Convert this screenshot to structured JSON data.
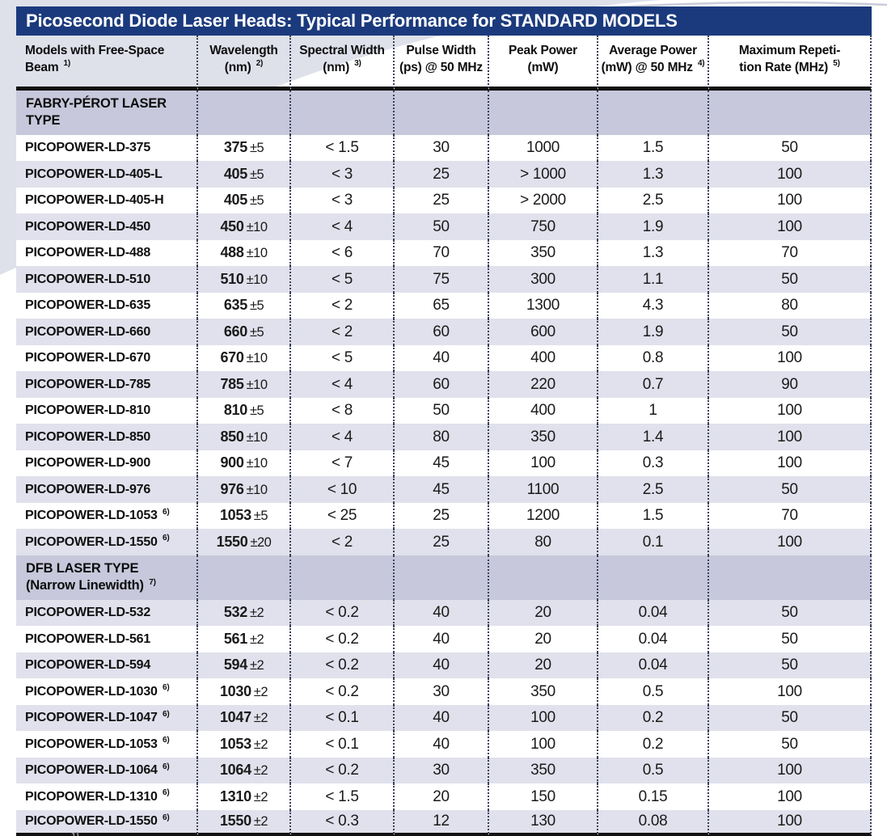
{
  "title": "Picosecond Diode Laser Heads: Typical Performance for STANDARD MODELS",
  "columns": [
    {
      "line1": "Models with Free-Space",
      "line2": "Beam",
      "sup": "1)"
    },
    {
      "line1": "Wavelength",
      "line2": "(nm)",
      "sup": "2)"
    },
    {
      "line1": "Spectral Width",
      "line2": "(nm)",
      "sup": "3)"
    },
    {
      "line1": "Pulse Width",
      "line2": "(ps) @ 50 MHz",
      "sup": ""
    },
    {
      "line1": "Peak Power",
      "line2": "(mW)",
      "sup": ""
    },
    {
      "line1": "Average Power",
      "line2": "(mW) @ 50 MHz",
      "sup": "4)"
    },
    {
      "line1": "Maximum Repeti-",
      "line2": "tion Rate  (MHz)",
      "sup": "5)"
    }
  ],
  "sections": [
    {
      "name": "FABRY-PÉROT LASER TYPE",
      "name_line2": "",
      "sup": "",
      "rows": [
        {
          "model": "PICOPOWER-LD-375",
          "sup": "",
          "wl": "375",
          "tol": "±5",
          "spectral": "< 1.5",
          "pulse": "30",
          "peak": "1000",
          "avg": "1.5",
          "rep": "50"
        },
        {
          "model": "PICOPOWER-LD-405-L",
          "sup": "",
          "wl": "405",
          "tol": "±5",
          "spectral": "< 3",
          "pulse": "25",
          "peak": "> 1000",
          "avg": "1.3",
          "rep": "100"
        },
        {
          "model": "PICOPOWER-LD-405-H",
          "sup": "",
          "wl": "405",
          "tol": "±5",
          "spectral": "< 3",
          "pulse": "25",
          "peak": "> 2000",
          "avg": "2.5",
          "rep": "100"
        },
        {
          "model": "PICOPOWER-LD-450",
          "sup": "",
          "wl": "450",
          "tol": "±10",
          "spectral": "< 4",
          "pulse": "50",
          "peak": "750",
          "avg": "1.9",
          "rep": "100"
        },
        {
          "model": "PICOPOWER-LD-488",
          "sup": "",
          "wl": "488",
          "tol": "±10",
          "spectral": "< 6",
          "pulse": "70",
          "peak": "350",
          "avg": "1.3",
          "rep": "70"
        },
        {
          "model": "PICOPOWER-LD-510",
          "sup": "",
          "wl": "510",
          "tol": "±10",
          "spectral": "< 5",
          "pulse": "75",
          "peak": "300",
          "avg": "1.1",
          "rep": "50"
        },
        {
          "model": "PICOPOWER-LD-635",
          "sup": "",
          "wl": "635",
          "tol": "±5",
          "spectral": "< 2",
          "pulse": "65",
          "peak": "1300",
          "avg": "4.3",
          "rep": "80"
        },
        {
          "model": "PICOPOWER-LD-660",
          "sup": "",
          "wl": "660",
          "tol": "±5",
          "spectral": "< 2",
          "pulse": "60",
          "peak": "600",
          "avg": "1.9",
          "rep": "50"
        },
        {
          "model": "PICOPOWER-LD-670",
          "sup": "",
          "wl": "670",
          "tol": "±10",
          "spectral": "< 5",
          "pulse": "40",
          "peak": "400",
          "avg": "0.8",
          "rep": "100"
        },
        {
          "model": "PICOPOWER-LD-785",
          "sup": "",
          "wl": "785",
          "tol": "±10",
          "spectral": "< 4",
          "pulse": "60",
          "peak": "220",
          "avg": "0.7",
          "rep": "90"
        },
        {
          "model": "PICOPOWER-LD-810",
          "sup": "",
          "wl": "810",
          "tol": "±5",
          "spectral": "< 8",
          "pulse": "50",
          "peak": "400",
          "avg": "1",
          "rep": "100"
        },
        {
          "model": "PICOPOWER-LD-850",
          "sup": "",
          "wl": "850",
          "tol": "±10",
          "spectral": "< 4",
          "pulse": "80",
          "peak": "350",
          "avg": "1.4",
          "rep": "100"
        },
        {
          "model": "PICOPOWER-LD-900",
          "sup": "",
          "wl": "900",
          "tol": "±10",
          "spectral": "< 7",
          "pulse": "45",
          "peak": "100",
          "avg": "0.3",
          "rep": "100"
        },
        {
          "model": "PICOPOWER-LD-976",
          "sup": "",
          "wl": "976",
          "tol": "±10",
          "spectral": "< 10",
          "pulse": "45",
          "peak": "1100",
          "avg": "2.5",
          "rep": "50"
        },
        {
          "model": "PICOPOWER-LD-1053",
          "sup": "6)",
          "wl": "1053",
          "tol": "±5",
          "spectral": "< 25",
          "pulse": "25",
          "peak": "1200",
          "avg": "1.5",
          "rep": "70"
        },
        {
          "model": "PICOPOWER-LD-1550",
          "sup": "6)",
          "wl": "1550",
          "tol": "±20",
          "spectral": "< 2",
          "pulse": "25",
          "peak": "80",
          "avg": "0.1",
          "rep": "100"
        }
      ]
    },
    {
      "name": "DFB LASER TYPE",
      "name_line2": "(Narrow Linewidth)",
      "sup": "7)",
      "rows": [
        {
          "model": "PICOPOWER-LD-532",
          "sup": "",
          "wl": "532",
          "tol": "±2",
          "spectral": "< 0.2",
          "pulse": "40",
          "peak": "20",
          "avg": "0.04",
          "rep": "50"
        },
        {
          "model": "PICOPOWER-LD-561",
          "sup": "",
          "wl": "561",
          "tol": "±2",
          "spectral": "< 0.2",
          "pulse": "40",
          "peak": "20",
          "avg": "0.04",
          "rep": "50"
        },
        {
          "model": "PICOPOWER-LD-594",
          "sup": "",
          "wl": "594",
          "tol": "±2",
          "spectral": "< 0.2",
          "pulse": "40",
          "peak": "20",
          "avg": "0.04",
          "rep": "50"
        },
        {
          "model": "PICOPOWER-LD-1030",
          "sup": "6)",
          "wl": "1030",
          "tol": "±2",
          "spectral": "< 0.2",
          "pulse": "30",
          "peak": "350",
          "avg": "0.5",
          "rep": "100"
        },
        {
          "model": "PICOPOWER-LD-1047",
          "sup": "6)",
          "wl": "1047",
          "tol": "±2",
          "spectral": "< 0.1",
          "pulse": "40",
          "peak": "100",
          "avg": "0.2",
          "rep": "50"
        },
        {
          "model": "PICOPOWER-LD-1053",
          "sup": "6)",
          "wl": "1053",
          "tol": "±2",
          "spectral": "< 0.1",
          "pulse": "40",
          "peak": "100",
          "avg": "0.2",
          "rep": "50"
        },
        {
          "model": "PICOPOWER-LD-1064",
          "sup": "6)",
          "wl": "1064",
          "tol": "±2",
          "spectral": "< 0.2",
          "pulse": "30",
          "peak": "350",
          "avg": "0.5",
          "rep": "100"
        },
        {
          "model": "PICOPOWER-LD-1310",
          "sup": "6)",
          "wl": "1310",
          "tol": "±2",
          "spectral": "< 1.5",
          "pulse": "20",
          "peak": "150",
          "avg": "0.15",
          "rep": "100"
        },
        {
          "model": "PICOPOWER-LD-1550",
          "sup": "6)",
          "wl": "1550",
          "tol": "±2",
          "spectral": "< 0.3",
          "pulse": "12",
          "peak": "130",
          "avg": "0.08",
          "rep": "100"
        }
      ]
    }
  ],
  "footnote_marker": "1)",
  "colors": {
    "navy": "#1b3a7d",
    "section_bg": "#c7c8db",
    "alt_row_bg": "#e0e1ec",
    "dotted_line": "#3a4158",
    "heavy_line": "#111111",
    "deco_bg": "#dee0ea",
    "deco_arc": "#c9ccd9",
    "body_text": "#1a1a1a"
  }
}
